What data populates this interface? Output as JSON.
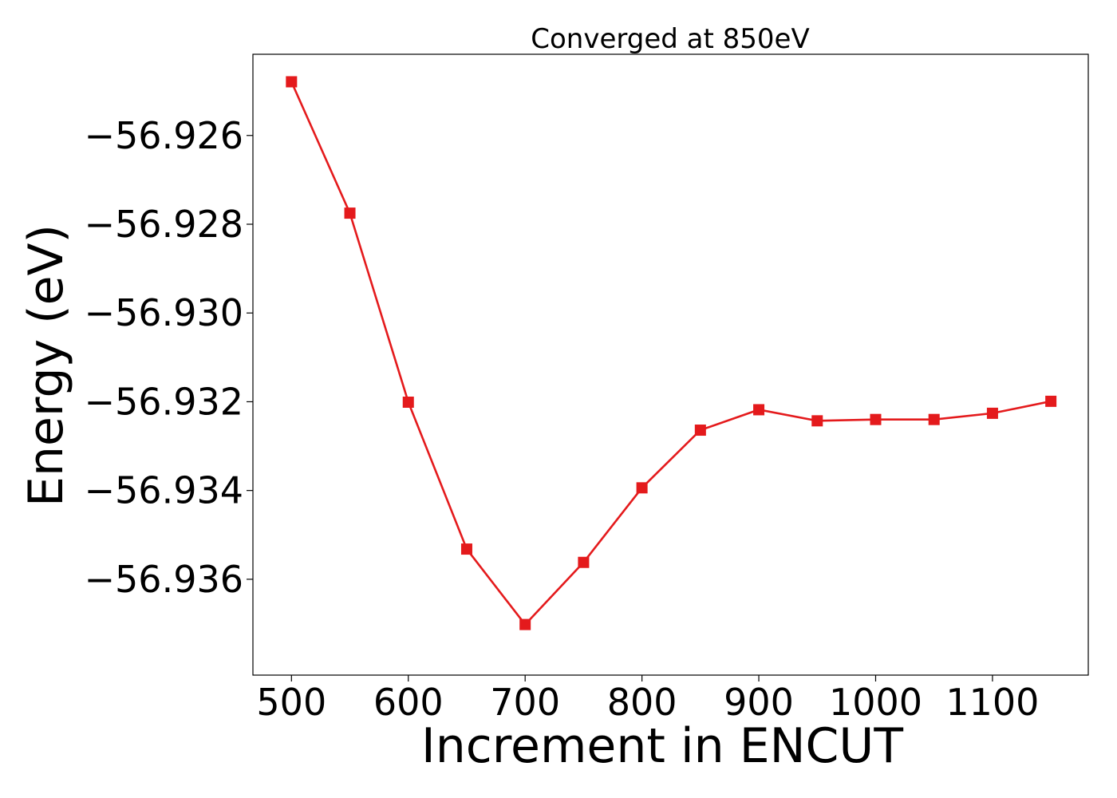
{
  "chart_data": {
    "type": "line",
    "title": "Converged at 850eV",
    "xlabel": "Increment in ENCUT",
    "ylabel": "Energy (eV)",
    "x": [
      500,
      550,
      600,
      650,
      700,
      750,
      800,
      850,
      900,
      950,
      1000,
      1050,
      1100,
      1150
    ],
    "series": [
      {
        "values": [
          -56.92479,
          -56.92775,
          -56.93201,
          -56.93532,
          -56.93702,
          -56.93562,
          -56.93394,
          -56.93264,
          -56.93218,
          -56.93243,
          -56.9324,
          -56.9324,
          -56.93226,
          -56.93199
        ]
      }
    ],
    "xlim": [
      467,
      1182
    ],
    "ylim": [
      -56.93816,
      -56.92417
    ],
    "xticks": [
      500,
      600,
      700,
      800,
      900,
      1000,
      1100
    ],
    "xtick_labels": [
      "500",
      "600",
      "700",
      "800",
      "900",
      "1000",
      "1100"
    ],
    "yticks": [
      -56.926,
      -56.928,
      -56.93,
      -56.932,
      -56.934,
      -56.936
    ],
    "ytick_labels": [
      "−56.926",
      "−56.928",
      "−56.930",
      "−56.932",
      "−56.934",
      "−56.936"
    ],
    "marker": "square",
    "line_color": "#e41a1c",
    "grid": false,
    "legend": "none"
  }
}
